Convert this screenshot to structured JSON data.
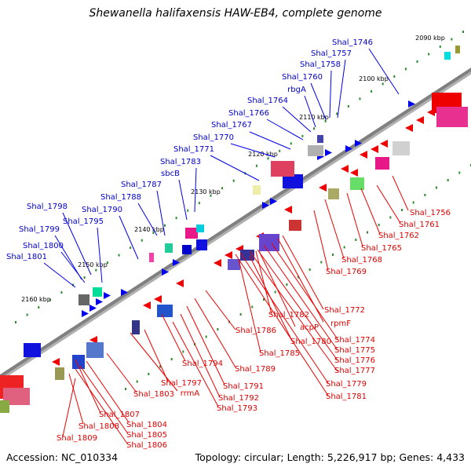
{
  "title": "Shewanella halifaxensis HAW-EB4, complete genome",
  "footer": {
    "accession": "Accession: NC_010334",
    "topology": "Topology: circular; Length: 5,226,917 bp; Genes: 4,433"
  },
  "colors": {
    "axis": "#808080",
    "plus_strand_label": "#0000cc",
    "minus_strand_label": "#dd0000",
    "tick": "#2e8b2e"
  },
  "scale_labels": [
    "2090 kbp",
    "2100 kbp",
    "2110 kbp",
    "2120 kbp",
    "2130 kbp",
    "2140 kbp",
    "2150 kbp",
    "2160 kbp"
  ],
  "plus_labels": [
    "Shal_1746",
    "Shal_1757",
    "Shal_1758",
    "Shal_1760",
    "rbgA",
    "Shal_1764",
    "Shal_1766",
    "Shal_1767",
    "Shal_1770",
    "Shal_1771",
    "Shal_1783",
    "sbcB",
    "Shal_1787",
    "Shal_1788",
    "Shal_1790",
    "Shal_1798",
    "Shal_1795",
    "Shal_1799",
    "Shal_1800",
    "Shal_1801"
  ],
  "minus_labels": [
    "Shal_1756",
    "Shal_1761",
    "Shal_1762",
    "Shal_1765",
    "Shal_1768",
    "Shal_1769",
    "Shal_1772",
    "rpmF",
    "Shal_1774",
    "Shal_1775",
    "Shal_1776",
    "Shal_1777",
    "Shal_1779",
    "Shal_1781",
    "Shal_1782",
    "acpP",
    "Shal_1780",
    "Shal_1785",
    "Shal_1786",
    "Shal_1789",
    "Shal_1791",
    "Shal_1792",
    "Shal_1793",
    "Shal_1794",
    "Shal_1797",
    "rrmA",
    "Shal_1803",
    "Shal_1804",
    "Shal_1805",
    "Shal_1806",
    "Shal_1807",
    "Shal_1808",
    "Shal_1809"
  ]
}
